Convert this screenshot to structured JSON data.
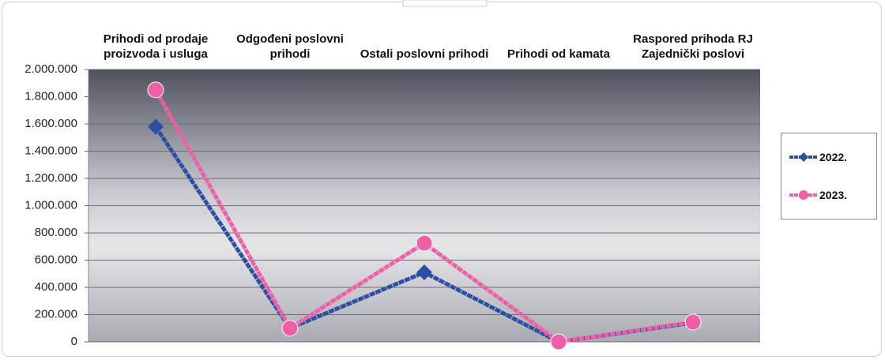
{
  "chart_data": {
    "type": "line",
    "categories": [
      "Prihodi od prodaje proizvoda i usluga",
      "Odgođeni poslovni prihodi",
      "Ostali poslovni prihodi",
      "Prihodi od kamata",
      "Raspored prihoda RJ Zajednički poslovi"
    ],
    "series": [
      {
        "name": "2022.",
        "color": "#2a4fa3",
        "marker": "diamond",
        "values": [
          1580000,
          100000,
          510000,
          0,
          140000
        ]
      },
      {
        "name": "2023.",
        "color": "#ee5fa7",
        "marker": "circle",
        "values": [
          1850000,
          100000,
          725000,
          0,
          145000
        ]
      }
    ],
    "ylim": [
      0,
      2000000
    ],
    "yticks": [
      0,
      {
        "value": 200000,
        "label": "200.000"
      },
      {
        "value": 400000,
        "label": "400.000"
      },
      {
        "value": 600000,
        "label": "600.000"
      },
      {
        "value": 800000,
        "label": "800.000"
      },
      {
        "value": 1000000,
        "label": "1.000.000"
      },
      {
        "value": 1200000,
        "label": "1.200.000"
      },
      {
        "value": 1400000,
        "label": "1.400.000"
      },
      {
        "value": 1600000,
        "label": "1.600.000"
      },
      {
        "value": 1800000,
        "label": "1.800.000"
      },
      {
        "value": 2000000,
        "label": "2.000.000"
      }
    ],
    "grid": true,
    "legend": "right"
  }
}
